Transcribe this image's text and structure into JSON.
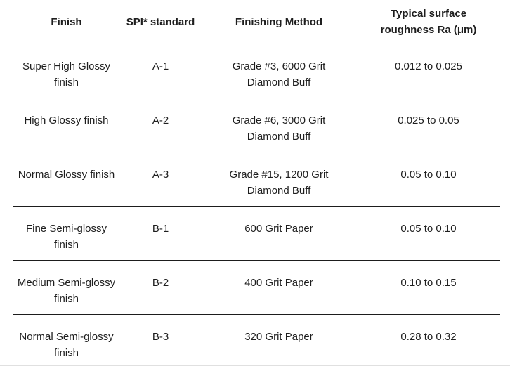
{
  "chart_data": {
    "type": "table",
    "columns": [
      "Finish",
      "SPI* standard",
      "Finishing Method",
      "Typical surface\nroughness Ra (μm)"
    ],
    "rows": [
      [
        "Super High Glossy\nfinish",
        "A-1",
        "Grade #3, 6000 Grit\nDiamond Buff",
        "0.012 to 0.025"
      ],
      [
        "High Glossy finish",
        "A-2",
        "Grade #6, 3000 Grit\nDiamond Buff",
        "0.025 to 0.05"
      ],
      [
        "Normal Glossy finish",
        "A-3",
        "Grade #15, 1200 Grit\nDiamond Buff",
        "0.05 to 0.10"
      ],
      [
        "Fine Semi-glossy\nfinish",
        "B-1",
        "600 Grit Paper",
        "0.05 to 0.10"
      ],
      [
        "Medium Semi-glossy\nfinish",
        "B-2",
        "400 Grit Paper",
        "0.10 to 0.15"
      ],
      [
        "Normal Semi-glossy\nfinish",
        "B-3",
        "320 Grit Paper",
        "0.28 to 0.32"
      ]
    ],
    "title": "",
    "layout": {
      "grid": "horizontal row dividers only",
      "header_style": "bold, no vertical rules",
      "legend": "none"
    }
  },
  "colors": {
    "text": "#1e1e1e",
    "divider": "#1d1d1d",
    "background": "#ffffff",
    "bottom_edge": "#e0e0e0"
  }
}
